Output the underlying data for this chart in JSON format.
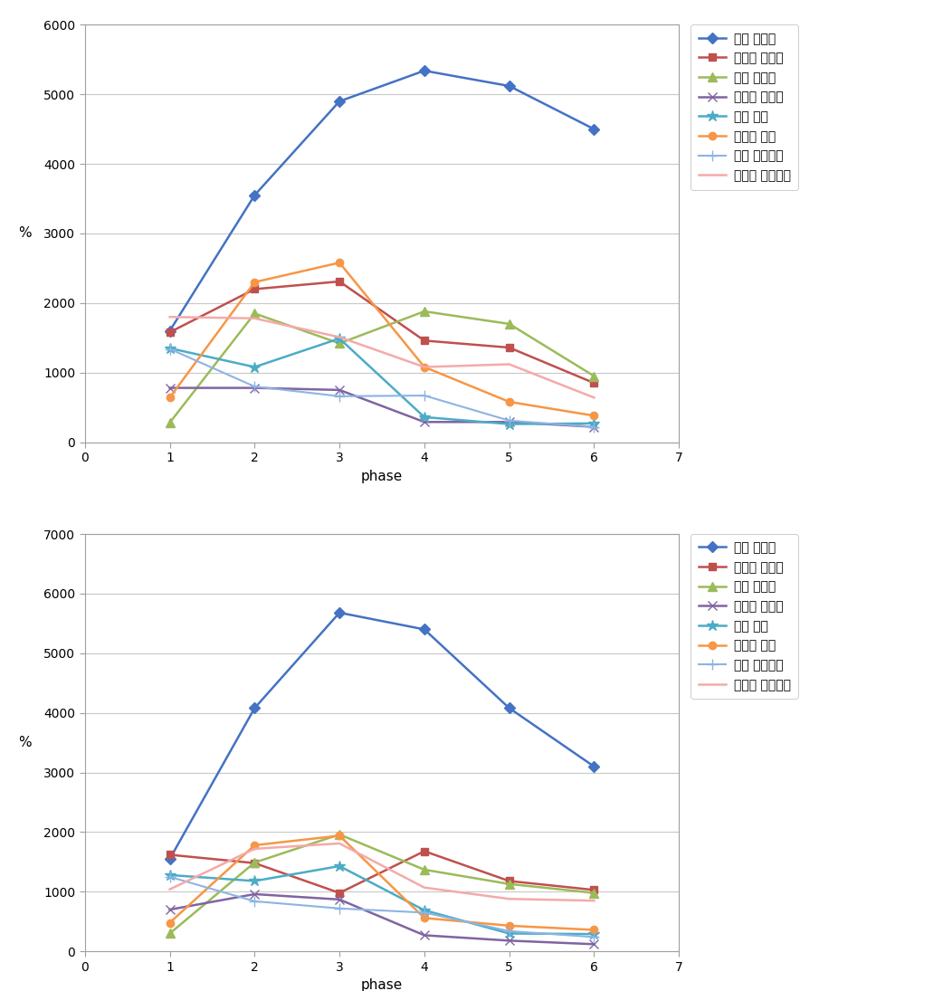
{
  "top_chart": {
    "ylim": [
      0,
      6000
    ],
    "yticks": [
      0,
      1000,
      2000,
      3000,
      4000,
      5000,
      6000
    ],
    "xlim": [
      0,
      7
    ],
    "xticks": [
      0,
      1,
      2,
      3,
      4,
      5,
      6,
      7
    ],
    "xlabel": "phase",
    "ylabel": "%",
    "series": [
      {
        "label": "왼쪽 승모근",
        "color": "#4472C4",
        "marker": "D",
        "markersize": 6,
        "linewidth": 1.8,
        "x": [
          1,
          2,
          3,
          4,
          5,
          6
        ],
        "y": [
          1600,
          3550,
          4900,
          5340,
          5120,
          4500
        ]
      },
      {
        "label": "오른쪽 승모근",
        "color": "#C0504D",
        "marker": "s",
        "markersize": 6,
        "linewidth": 1.8,
        "x": [
          1,
          2,
          3,
          4,
          5,
          6
        ],
        "y": [
          1580,
          2200,
          2310,
          1460,
          1360,
          850
        ]
      },
      {
        "label": "왼쪽 광배근",
        "color": "#9BBB59",
        "marker": "^",
        "markersize": 7,
        "linewidth": 1.8,
        "x": [
          1,
          2,
          3,
          4,
          5,
          6
        ],
        "y": [
          280,
          1850,
          1420,
          1880,
          1700,
          950
        ]
      },
      {
        "label": "오른쪽 광배근",
        "color": "#8064A2",
        "marker": "x",
        "markersize": 7,
        "linewidth": 1.8,
        "x": [
          1,
          2,
          3,
          4,
          5,
          6
        ],
        "y": [
          780,
          780,
          750,
          290,
          290,
          220
        ]
      },
      {
        "label": "왼쪽 요근",
        "color": "#4BACC6",
        "marker": "*",
        "markersize": 9,
        "linewidth": 1.8,
        "x": [
          1,
          2,
          3,
          4,
          5,
          6
        ],
        "y": [
          1350,
          1080,
          1490,
          360,
          260,
          270
        ]
      },
      {
        "label": "오른쪽 요근",
        "color": "#F79646",
        "marker": "o",
        "markersize": 6,
        "linewidth": 1.8,
        "x": [
          1,
          2,
          3,
          4,
          5,
          6
        ],
        "y": [
          640,
          2300,
          2580,
          1080,
          580,
          380
        ]
      },
      {
        "label": "왼쪽 외복사근",
        "color": "#8DB4E2",
        "marker": "+",
        "markersize": 8,
        "linewidth": 1.5,
        "x": [
          1,
          2,
          3,
          4,
          5,
          6
        ],
        "y": [
          1340,
          800,
          660,
          670,
          310,
          220
        ]
      },
      {
        "label": "오른쪽 외복사근",
        "color": "#F4AAAA",
        "marker": null,
        "markersize": 0,
        "linewidth": 1.8,
        "x": [
          1,
          2,
          3,
          4,
          5,
          6
        ],
        "y": [
          1800,
          1780,
          1510,
          1080,
          1120,
          640
        ]
      }
    ]
  },
  "bottom_chart": {
    "ylim": [
      0,
      7000
    ],
    "yticks": [
      0,
      1000,
      2000,
      3000,
      4000,
      5000,
      6000,
      7000
    ],
    "xlim": [
      0,
      7
    ],
    "xticks": [
      0,
      1,
      2,
      3,
      4,
      5,
      6,
      7
    ],
    "xlabel": "phase",
    "ylabel": "%",
    "series": [
      {
        "label": "왼쪽 승모근",
        "color": "#4472C4",
        "marker": "D",
        "markersize": 6,
        "linewidth": 1.8,
        "x": [
          1,
          2,
          3,
          4,
          5,
          6
        ],
        "y": [
          1550,
          4080,
          5680,
          5400,
          4080,
          3100
        ]
      },
      {
        "label": "오른쪽 승모근",
        "color": "#C0504D",
        "marker": "s",
        "markersize": 6,
        "linewidth": 1.8,
        "x": [
          1,
          2,
          3,
          4,
          5,
          6
        ],
        "y": [
          1620,
          1480,
          980,
          1680,
          1180,
          1030
        ]
      },
      {
        "label": "왼쪽 광배근",
        "color": "#9BBB59",
        "marker": "^",
        "markersize": 7,
        "linewidth": 1.8,
        "x": [
          1,
          2,
          3,
          4,
          5,
          6
        ],
        "y": [
          300,
          1490,
          1960,
          1370,
          1130,
          980
        ]
      },
      {
        "label": "오른쪽 광배근",
        "color": "#8064A2",
        "marker": "x",
        "markersize": 7,
        "linewidth": 1.8,
        "x": [
          1,
          2,
          3,
          4,
          5,
          6
        ],
        "y": [
          700,
          960,
          870,
          270,
          180,
          120
        ]
      },
      {
        "label": "왼쪽 요근",
        "color": "#4BACC6",
        "marker": "*",
        "markersize": 9,
        "linewidth": 1.8,
        "x": [
          1,
          2,
          3,
          4,
          5,
          6
        ],
        "y": [
          1280,
          1180,
          1430,
          690,
          300,
          290
        ]
      },
      {
        "label": "오른쪽 요근",
        "color": "#F79646",
        "marker": "o",
        "markersize": 6,
        "linewidth": 1.8,
        "x": [
          1,
          2,
          3,
          4,
          5,
          6
        ],
        "y": [
          480,
          1780,
          1940,
          560,
          430,
          360
        ]
      },
      {
        "label": "왼쪽 외복사근",
        "color": "#8DB4E2",
        "marker": "+",
        "markersize": 8,
        "linewidth": 1.5,
        "x": [
          1,
          2,
          3,
          4,
          5,
          6
        ],
        "y": [
          1250,
          840,
          720,
          650,
          340,
          240
        ]
      },
      {
        "label": "오른쪽 외복사근",
        "color": "#F4AAAA",
        "marker": null,
        "markersize": 0,
        "linewidth": 1.8,
        "x": [
          1,
          2,
          3,
          4,
          5,
          6
        ],
        "y": [
          1040,
          1720,
          1810,
          1070,
          880,
          850
        ]
      }
    ]
  },
  "fig_bg": "#FFFFFF",
  "plot_bg": "#FFFFFF",
  "grid_color": "#C8C8C8",
  "border_color": "#A0A0A0",
  "legend_fontsize": 10,
  "tick_fontsize": 10,
  "axis_label_fontsize": 11
}
